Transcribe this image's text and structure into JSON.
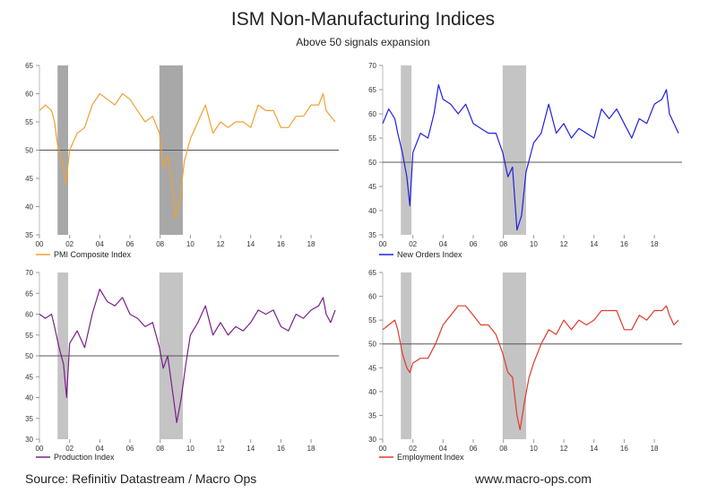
{
  "title": "ISM Non-Manufacturing Indices",
  "subtitle": "Above 50 signals expansion",
  "footer": {
    "source": "Source: Refinitiv Datastream / Macro Ops",
    "site": "www.macro-ops.com"
  },
  "chart_data": [
    {
      "type": "line",
      "name": "PMI Composite Index",
      "color": "#f0a030",
      "ylim": [
        35,
        65
      ],
      "yticks": [
        35,
        40,
        45,
        50,
        55,
        60,
        65
      ],
      "xlim": [
        2000,
        2019.6
      ],
      "xticks": [
        2000,
        2002,
        2004,
        2006,
        2008,
        2010,
        2012,
        2014,
        2016,
        2018
      ],
      "xtick_labels": [
        "00",
        "02",
        "04",
        "06",
        "08",
        "10",
        "12",
        "14",
        "16",
        "18"
      ],
      "reference_line": 50,
      "recessions": [
        [
          2001.2,
          2001.9
        ],
        [
          2007.95,
          2009.5
        ]
      ],
      "recession_color": "#a8a8a8",
      "legend": "PMI Composite Index",
      "points": [
        [
          2000.0,
          57
        ],
        [
          2000.4,
          58
        ],
        [
          2000.8,
          57
        ],
        [
          2001.0,
          55
        ],
        [
          2001.2,
          51
        ],
        [
          2001.5,
          48
        ],
        [
          2001.75,
          44
        ],
        [
          2002.0,
          50
        ],
        [
          2002.5,
          53
        ],
        [
          2003.0,
          54
        ],
        [
          2003.5,
          58
        ],
        [
          2004.0,
          60
        ],
        [
          2004.5,
          59
        ],
        [
          2005.0,
          58
        ],
        [
          2005.5,
          60
        ],
        [
          2006.0,
          59
        ],
        [
          2006.5,
          57
        ],
        [
          2007.0,
          55
        ],
        [
          2007.5,
          56
        ],
        [
          2007.95,
          53
        ],
        [
          2008.2,
          47
        ],
        [
          2008.5,
          49
        ],
        [
          2008.8,
          44
        ],
        [
          2009.0,
          38
        ],
        [
          2009.3,
          41
        ],
        [
          2009.6,
          48
        ],
        [
          2010.0,
          52
        ],
        [
          2010.5,
          55
        ],
        [
          2011.0,
          58
        ],
        [
          2011.5,
          53
        ],
        [
          2012.0,
          55
        ],
        [
          2012.5,
          54
        ],
        [
          2013.0,
          55
        ],
        [
          2013.5,
          55
        ],
        [
          2014.0,
          54
        ],
        [
          2014.5,
          58
        ],
        [
          2015.0,
          57
        ],
        [
          2015.5,
          57
        ],
        [
          2016.0,
          54
        ],
        [
          2016.5,
          54
        ],
        [
          2017.0,
          56
        ],
        [
          2017.5,
          56
        ],
        [
          2018.0,
          58
        ],
        [
          2018.5,
          58
        ],
        [
          2018.8,
          60
        ],
        [
          2019.0,
          57
        ],
        [
          2019.3,
          56
        ],
        [
          2019.6,
          55
        ]
      ]
    },
    {
      "type": "line",
      "name": "New Orders Index",
      "color": "#2020e0",
      "ylim": [
        35,
        70
      ],
      "yticks": [
        35,
        40,
        45,
        50,
        55,
        60,
        65,
        70
      ],
      "xlim": [
        2000,
        2019.6
      ],
      "xticks": [
        2000,
        2002,
        2004,
        2006,
        2008,
        2010,
        2012,
        2014,
        2016,
        2018
      ],
      "xtick_labels": [
        "00",
        "02",
        "04",
        "06",
        "08",
        "10",
        "12",
        "14",
        "16",
        "18"
      ],
      "reference_line": 50,
      "recessions": [
        [
          2001.2,
          2001.9
        ],
        [
          2007.95,
          2009.5
        ]
      ],
      "recession_color": "#c4c4c4",
      "legend": "New Orders Index",
      "points": [
        [
          2000.0,
          58
        ],
        [
          2000.4,
          61
        ],
        [
          2000.8,
          59
        ],
        [
          2001.0,
          56
        ],
        [
          2001.3,
          52
        ],
        [
          2001.6,
          47
        ],
        [
          2001.8,
          41
        ],
        [
          2002.0,
          52
        ],
        [
          2002.5,
          56
        ],
        [
          2003.0,
          55
        ],
        [
          2003.4,
          60
        ],
        [
          2003.7,
          66
        ],
        [
          2004.0,
          63
        ],
        [
          2004.5,
          62
        ],
        [
          2005.0,
          60
        ],
        [
          2005.5,
          62
        ],
        [
          2006.0,
          58
        ],
        [
          2006.5,
          57
        ],
        [
          2007.0,
          56
        ],
        [
          2007.5,
          56
        ],
        [
          2007.95,
          52
        ],
        [
          2008.3,
          47
        ],
        [
          2008.6,
          49
        ],
        [
          2008.9,
          36
        ],
        [
          2009.2,
          39
        ],
        [
          2009.5,
          48
        ],
        [
          2010.0,
          54
        ],
        [
          2010.5,
          56
        ],
        [
          2011.0,
          62
        ],
        [
          2011.5,
          56
        ],
        [
          2012.0,
          58
        ],
        [
          2012.5,
          55
        ],
        [
          2013.0,
          57
        ],
        [
          2013.5,
          56
        ],
        [
          2014.0,
          55
        ],
        [
          2014.5,
          61
        ],
        [
          2015.0,
          59
        ],
        [
          2015.5,
          61
        ],
        [
          2016.0,
          58
        ],
        [
          2016.5,
          55
        ],
        [
          2017.0,
          59
        ],
        [
          2017.5,
          58
        ],
        [
          2018.0,
          62
        ],
        [
          2018.5,
          63
        ],
        [
          2018.8,
          65
        ],
        [
          2019.0,
          60
        ],
        [
          2019.3,
          58
        ],
        [
          2019.6,
          56
        ]
      ]
    },
    {
      "type": "line",
      "name": "Production Index",
      "color": "#7a1f8a",
      "ylim": [
        30,
        70
      ],
      "yticks": [
        30,
        35,
        40,
        45,
        50,
        55,
        60,
        65,
        70
      ],
      "xlim": [
        2000,
        2019.6
      ],
      "xticks": [
        2000,
        2002,
        2004,
        2006,
        2008,
        2010,
        2012,
        2014,
        2016,
        2018
      ],
      "xtick_labels": [
        "00",
        "02",
        "04",
        "06",
        "08",
        "10",
        "12",
        "14",
        "16",
        "18"
      ],
      "reference_line": 50,
      "recessions": [
        [
          2001.2,
          2001.9
        ],
        [
          2007.95,
          2009.5
        ]
      ],
      "recession_color": "#c4c4c4",
      "legend": "Production Index",
      "points": [
        [
          2000.0,
          60
        ],
        [
          2000.4,
          59
        ],
        [
          2000.8,
          60
        ],
        [
          2001.0,
          57
        ],
        [
          2001.3,
          52
        ],
        [
          2001.6,
          48
        ],
        [
          2001.8,
          40
        ],
        [
          2002.0,
          53
        ],
        [
          2002.5,
          56
        ],
        [
          2003.0,
          52
        ],
        [
          2003.5,
          60
        ],
        [
          2004.0,
          66
        ],
        [
          2004.5,
          63
        ],
        [
          2005.0,
          62
        ],
        [
          2005.5,
          64
        ],
        [
          2006.0,
          60
        ],
        [
          2006.5,
          59
        ],
        [
          2007.0,
          57
        ],
        [
          2007.5,
          58
        ],
        [
          2007.95,
          52
        ],
        [
          2008.2,
          47
        ],
        [
          2008.5,
          50
        ],
        [
          2008.8,
          42
        ],
        [
          2009.1,
          34
        ],
        [
          2009.4,
          40
        ],
        [
          2009.7,
          48
        ],
        [
          2010.0,
          55
        ],
        [
          2010.5,
          58
        ],
        [
          2011.0,
          62
        ],
        [
          2011.5,
          55
        ],
        [
          2012.0,
          58
        ],
        [
          2012.5,
          55
        ],
        [
          2013.0,
          57
        ],
        [
          2013.5,
          56
        ],
        [
          2014.0,
          58
        ],
        [
          2014.5,
          61
        ],
        [
          2015.0,
          60
        ],
        [
          2015.5,
          61
        ],
        [
          2016.0,
          57
        ],
        [
          2016.5,
          56
        ],
        [
          2017.0,
          60
        ],
        [
          2017.5,
          59
        ],
        [
          2018.0,
          61
        ],
        [
          2018.5,
          62
        ],
        [
          2018.8,
          64
        ],
        [
          2019.0,
          60
        ],
        [
          2019.3,
          58
        ],
        [
          2019.6,
          61
        ]
      ]
    },
    {
      "type": "line",
      "name": "Employment Index",
      "color": "#e03a2a",
      "ylim": [
        30,
        65
      ],
      "yticks": [
        30,
        35,
        40,
        45,
        50,
        55,
        60,
        65
      ],
      "xlim": [
        2000,
        2019.6
      ],
      "xticks": [
        2000,
        2002,
        2004,
        2006,
        2008,
        2010,
        2012,
        2014,
        2016,
        2018
      ],
      "xtick_labels": [
        "00",
        "02",
        "04",
        "06",
        "08",
        "10",
        "12",
        "14",
        "16",
        "18"
      ],
      "reference_line": 50,
      "recessions": [
        [
          2001.2,
          2001.9
        ],
        [
          2007.95,
          2009.5
        ]
      ],
      "recession_color": "#c4c4c4",
      "legend": "Employment Index",
      "points": [
        [
          2000.0,
          53
        ],
        [
          2000.4,
          54
        ],
        [
          2000.8,
          55
        ],
        [
          2001.0,
          53
        ],
        [
          2001.3,
          48
        ],
        [
          2001.6,
          45
        ],
        [
          2001.8,
          44
        ],
        [
          2002.0,
          46
        ],
        [
          2002.5,
          47
        ],
        [
          2003.0,
          47
        ],
        [
          2003.5,
          50
        ],
        [
          2004.0,
          54
        ],
        [
          2004.5,
          56
        ],
        [
          2005.0,
          58
        ],
        [
          2005.5,
          58
        ],
        [
          2006.0,
          56
        ],
        [
          2006.5,
          54
        ],
        [
          2007.0,
          54
        ],
        [
          2007.5,
          52
        ],
        [
          2007.95,
          48
        ],
        [
          2008.3,
          44
        ],
        [
          2008.6,
          43
        ],
        [
          2008.9,
          35
        ],
        [
          2009.1,
          32
        ],
        [
          2009.4,
          38
        ],
        [
          2009.7,
          43
        ],
        [
          2010.0,
          46
        ],
        [
          2010.5,
          50
        ],
        [
          2011.0,
          53
        ],
        [
          2011.5,
          52
        ],
        [
          2012.0,
          55
        ],
        [
          2012.5,
          53
        ],
        [
          2013.0,
          55
        ],
        [
          2013.5,
          54
        ],
        [
          2014.0,
          55
        ],
        [
          2014.5,
          57
        ],
        [
          2015.0,
          57
        ],
        [
          2015.5,
          57
        ],
        [
          2016.0,
          53
        ],
        [
          2016.5,
          53
        ],
        [
          2017.0,
          56
        ],
        [
          2017.5,
          55
        ],
        [
          2018.0,
          57
        ],
        [
          2018.5,
          57
        ],
        [
          2018.8,
          58
        ],
        [
          2019.0,
          56
        ],
        [
          2019.3,
          54
        ],
        [
          2019.6,
          55
        ]
      ]
    }
  ]
}
